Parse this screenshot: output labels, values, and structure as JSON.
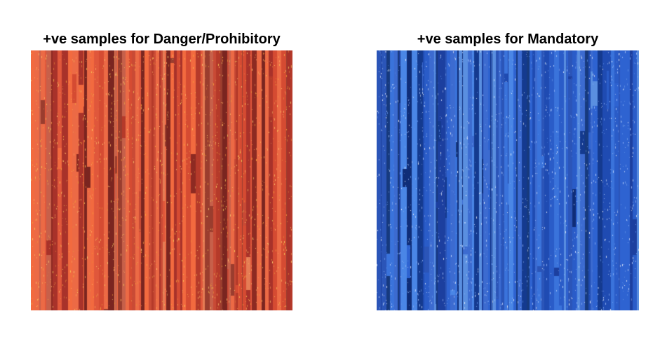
{
  "panels": {
    "left": {
      "title": "+ve samples for Danger/Prohibitory",
      "palette": [
        "#b53a2a",
        "#c94a35",
        "#e0573b",
        "#f26a3f",
        "#8d2a22",
        "#a8322a",
        "#7a2520",
        "#d54b32",
        "#ec6a45",
        "#9a3d2e",
        "#c7604a",
        "#e57d55"
      ],
      "speckle": [
        "#f5a23a",
        "#f6d05a",
        "#ffb060",
        "#e48a3a",
        "#ffd070"
      ]
    },
    "right": {
      "title": "+ve samples for Mandatory",
      "palette": [
        "#1f4bb2",
        "#2a5cc8",
        "#143a8f",
        "#0f2d78",
        "#3a73db",
        "#4a86e6",
        "#1c3f9f",
        "#2e63d1",
        "#5a8fe0",
        "#173a7e",
        "#2b55b8",
        "#3c6bd0"
      ],
      "speckle": [
        "#a8c6ff",
        "#7faaf0",
        "#cfe0ff",
        "#5d8fe6",
        "#ffffff"
      ]
    }
  }
}
